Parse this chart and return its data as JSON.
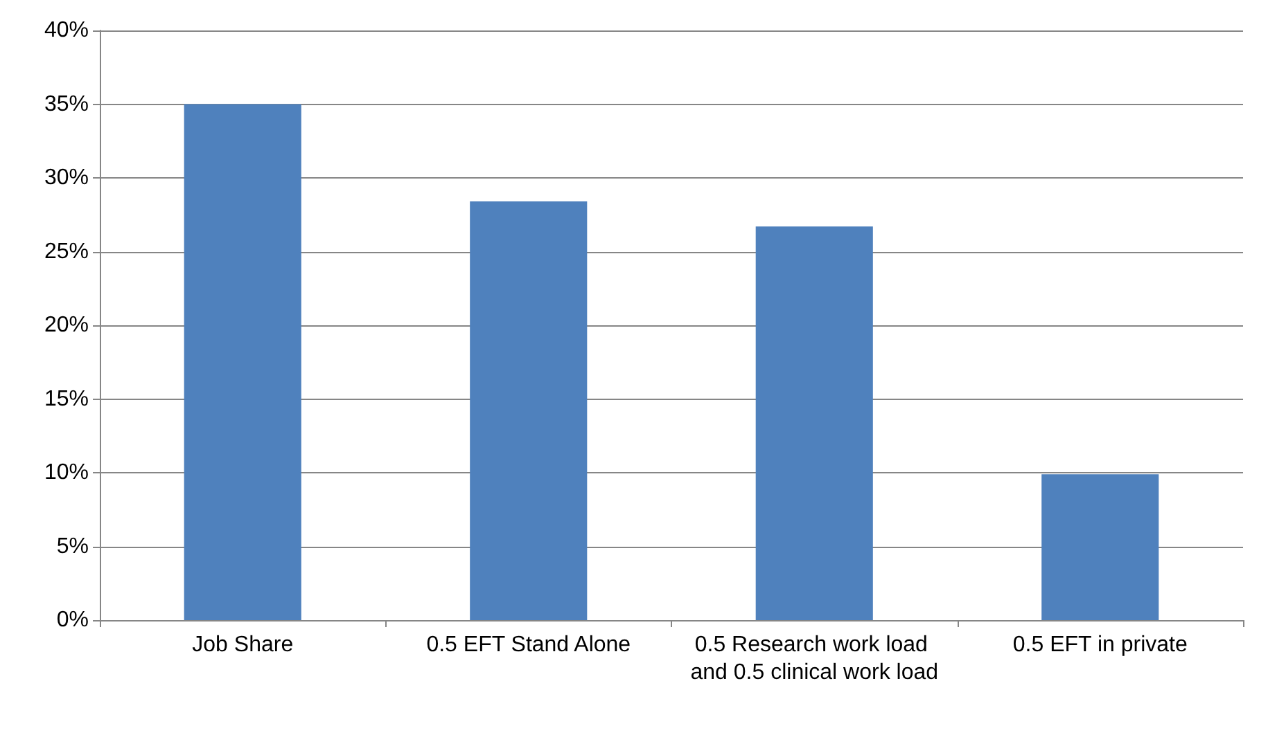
{
  "chart_data": {
    "type": "bar",
    "categories": [
      "Job Share",
      "0.5 EFT Stand Alone",
      "0.5 Research work load and 0.5 clinical work load",
      "0.5 EFT in private"
    ],
    "values": [
      35.0,
      28.4,
      26.7,
      9.9
    ],
    "color": "#4f81bd",
    "ylim": [
      0,
      40
    ],
    "yticks": [
      {
        "value": 0,
        "label": "0%"
      },
      {
        "value": 5,
        "label": "5%"
      },
      {
        "value": 10,
        "label": "10%"
      },
      {
        "value": 15,
        "label": "15%"
      },
      {
        "value": 20,
        "label": "20%"
      },
      {
        "value": 25,
        "label": "25%"
      },
      {
        "value": 30,
        "label": "30%"
      },
      {
        "value": 35,
        "label": "35%"
      },
      {
        "value": 40,
        "label": "40%"
      }
    ],
    "grid": true
  }
}
